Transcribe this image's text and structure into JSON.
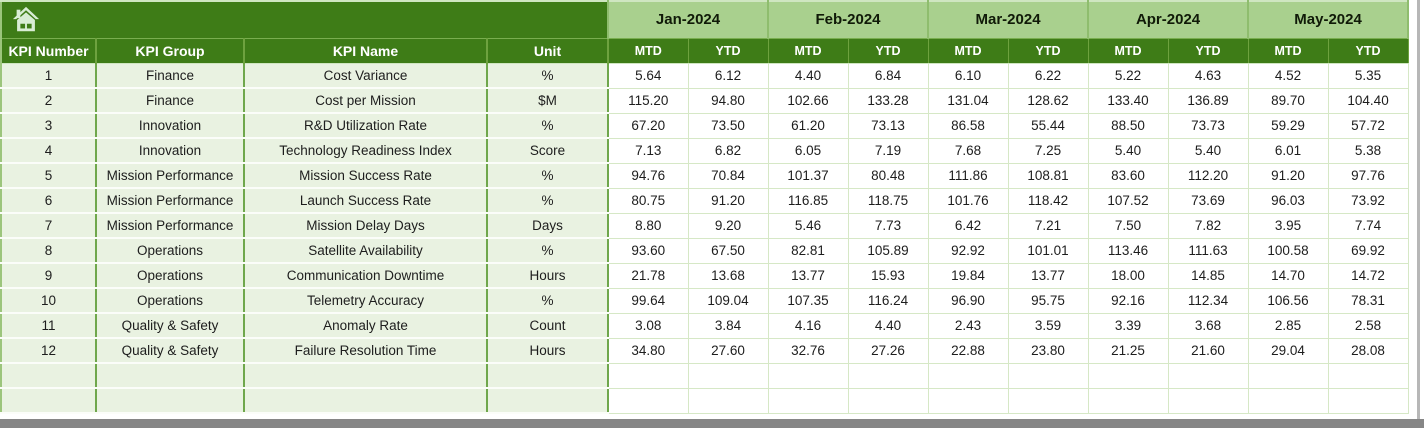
{
  "sheet": {
    "home_button": {
      "icon": "home-icon"
    },
    "columns": [
      "KPI Number",
      "KPI Group",
      "KPI Name",
      "Unit"
    ],
    "months": [
      "Jan-2024",
      "Feb-2024",
      "Mar-2024",
      "Apr-2024",
      "May-2024"
    ],
    "period_types": [
      "MTD",
      "YTD"
    ],
    "rows": [
      {
        "number": "1",
        "group": "Finance",
        "name": "Cost Variance",
        "unit": "%",
        "values": [
          "5.64",
          "6.12",
          "4.40",
          "6.84",
          "6.10",
          "6.22",
          "5.22",
          "4.63",
          "4.52",
          "5.35"
        ]
      },
      {
        "number": "2",
        "group": "Finance",
        "name": "Cost per Mission",
        "unit": "$M",
        "values": [
          "115.20",
          "94.80",
          "102.66",
          "133.28",
          "131.04",
          "128.62",
          "133.40",
          "136.89",
          "89.70",
          "104.40"
        ]
      },
      {
        "number": "3",
        "group": "Innovation",
        "name": "R&D Utilization Rate",
        "unit": "%",
        "values": [
          "67.20",
          "73.50",
          "61.20",
          "73.13",
          "86.58",
          "55.44",
          "88.50",
          "73.73",
          "59.29",
          "57.72"
        ]
      },
      {
        "number": "4",
        "group": "Innovation",
        "name": "Technology Readiness Index",
        "unit": "Score",
        "values": [
          "7.13",
          "6.82",
          "6.05",
          "7.19",
          "7.68",
          "7.25",
          "5.40",
          "5.40",
          "6.01",
          "5.38"
        ]
      },
      {
        "number": "5",
        "group": "Mission Performance",
        "name": "Mission Success Rate",
        "unit": "%",
        "values": [
          "94.76",
          "70.84",
          "101.37",
          "80.48",
          "111.86",
          "108.81",
          "83.60",
          "112.20",
          "91.20",
          "97.76"
        ]
      },
      {
        "number": "6",
        "group": "Mission Performance",
        "name": "Launch Success Rate",
        "unit": "%",
        "values": [
          "80.75",
          "91.20",
          "116.85",
          "118.75",
          "101.76",
          "118.42",
          "107.52",
          "73.69",
          "96.03",
          "73.92"
        ]
      },
      {
        "number": "7",
        "group": "Mission Performance",
        "name": "Mission Delay Days",
        "unit": "Days",
        "values": [
          "8.80",
          "9.20",
          "5.46",
          "7.73",
          "6.42",
          "7.21",
          "7.50",
          "7.82",
          "3.95",
          "7.74"
        ]
      },
      {
        "number": "8",
        "group": "Operations",
        "name": "Satellite Availability",
        "unit": "%",
        "values": [
          "93.60",
          "67.50",
          "82.81",
          "105.89",
          "92.92",
          "101.01",
          "113.46",
          "111.63",
          "100.58",
          "69.92"
        ]
      },
      {
        "number": "9",
        "group": "Operations",
        "name": "Communication Downtime",
        "unit": "Hours",
        "values": [
          "21.78",
          "13.68",
          "13.77",
          "15.93",
          "19.84",
          "13.77",
          "18.00",
          "14.85",
          "14.70",
          "14.72"
        ]
      },
      {
        "number": "10",
        "group": "Operations",
        "name": "Telemetry Accuracy",
        "unit": "%",
        "values": [
          "99.64",
          "109.04",
          "107.35",
          "116.24",
          "96.90",
          "95.75",
          "92.16",
          "112.34",
          "106.56",
          "78.31"
        ]
      },
      {
        "number": "11",
        "group": "Quality & Safety",
        "name": "Anomaly Rate",
        "unit": "Count",
        "values": [
          "3.08",
          "3.84",
          "4.16",
          "4.40",
          "2.43",
          "3.59",
          "3.39",
          "3.68",
          "2.85",
          "2.58"
        ]
      },
      {
        "number": "12",
        "group": "Quality & Safety",
        "name": "Failure Resolution Time",
        "unit": "Hours",
        "values": [
          "34.80",
          "27.60",
          "32.76",
          "27.26",
          "22.88",
          "23.80",
          "21.25",
          "21.60",
          "29.04",
          "28.08"
        ]
      }
    ],
    "empty_rows": 2
  },
  "colors": {
    "header_dark_green": "#3E7C17",
    "month_band_green": "#A9D08E",
    "left_cell_tint": "#E9F2E1",
    "grid_line_green": "#D6E8C6",
    "scrollbar_gray": "#868686"
  }
}
